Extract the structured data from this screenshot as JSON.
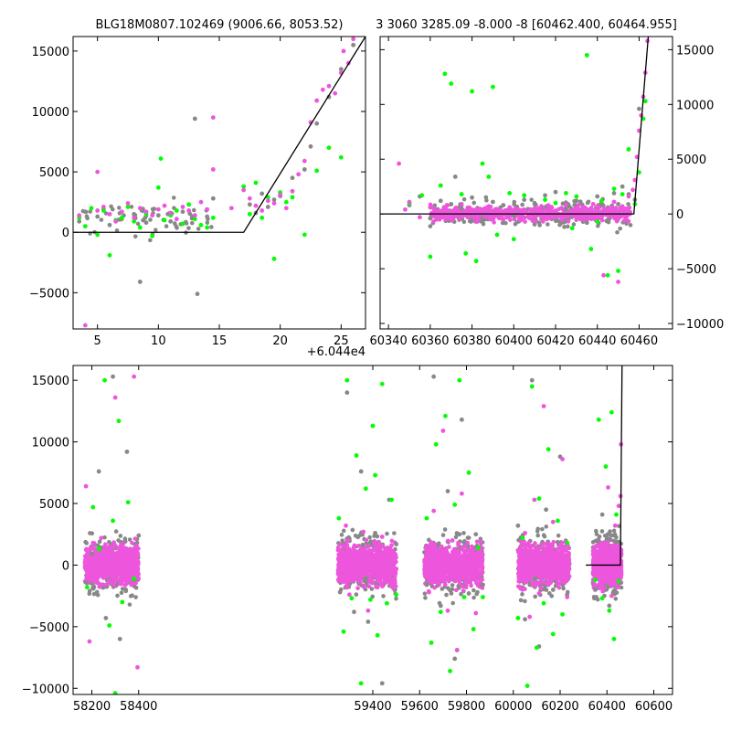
{
  "colors": {
    "pink": "#ee55dd",
    "green": "#00ff00",
    "gray": "#888888",
    "model": "#000000"
  },
  "chart_data": [
    {
      "id": "top-left",
      "type": "scatter",
      "title": "BLG18M0807.102469 (9006.66, 8053.52)",
      "xlim": [
        3,
        27
      ],
      "ylim": [
        -8000,
        16200
      ],
      "xticks": [
        5,
        10,
        15,
        20,
        25
      ],
      "yticks": [
        -5000,
        0,
        5000,
        10000,
        15000
      ],
      "ytick_side": "left",
      "model_line": {
        "x": [
          3,
          17,
          27
        ],
        "y": [
          0,
          0,
          16200
        ]
      },
      "series": [
        {
          "color": "gray",
          "x": [
            3.5,
            4,
            5,
            5.5,
            6,
            7,
            8,
            8.5,
            9,
            10,
            11,
            12,
            13,
            13.2,
            14,
            14.5,
            17.5,
            18,
            18.5,
            19,
            19.5,
            20,
            21,
            22,
            22.5,
            23,
            24,
            25,
            26
          ],
          "y": [
            900,
            1700,
            1300,
            1900,
            600,
            1100,
            1500,
            -4100,
            800,
            1400,
            900,
            1700,
            9400,
            -5100,
            1300,
            2800,
            2300,
            1600,
            3200,
            2100,
            2700,
            3000,
            4500,
            5200,
            7100,
            9000,
            11200,
            13500,
            15500
          ]
        },
        {
          "color": "green",
          "x": [
            3.5,
            4,
            4.5,
            5,
            5.5,
            6,
            6.5,
            7,
            7.5,
            8,
            8.5,
            9,
            9.5,
            10,
            10.2,
            10.5,
            11,
            11.5,
            12,
            12.5,
            13,
            13.5,
            14,
            14.5,
            17,
            17.5,
            18,
            18.5,
            19,
            19.5,
            20,
            20.5,
            21,
            22,
            23,
            24,
            25
          ],
          "y": [
            1200,
            500,
            2000,
            -200,
            1800,
            -1900,
            1000,
            1200,
            2100,
            900,
            400,
            1500,
            -300,
            3700,
            6100,
            1000,
            1400,
            1800,
            700,
            2300,
            1100,
            600,
            400,
            1200,
            3800,
            1500,
            4100,
            1200,
            2900,
            -2200,
            3300,
            2500,
            2900,
            -200,
            5100,
            7000,
            6200
          ]
        },
        {
          "color": "pink",
          "x": [
            3.5,
            4,
            5,
            5,
            5.5,
            6,
            6.5,
            7,
            7.5,
            8,
            8.5,
            9,
            9.5,
            10,
            10.5,
            11,
            11.5,
            12,
            12.5,
            13,
            13.5,
            14,
            14.5,
            14.5,
            16,
            17,
            17.5,
            18,
            18.5,
            19,
            19.5,
            20,
            20.5,
            21,
            21.5,
            22,
            22.5,
            23,
            23.5,
            24,
            24.5,
            25,
            25.2,
            25.6,
            26
          ],
          "y": [
            1400,
            -7700,
            1800,
            5000,
            2100,
            1500,
            900,
            1700,
            2400,
            1200,
            2000,
            1700,
            1400,
            1900,
            2200,
            1600,
            1100,
            2100,
            1800,
            1400,
            2500,
            1900,
            5200,
            9500,
            2000,
            3500,
            2800,
            2200,
            1800,
            2600,
            2400,
            3100,
            2000,
            3400,
            4800,
            5900,
            9100,
            10900,
            11800,
            12100,
            11500,
            13200,
            15000,
            14000,
            16000
          ]
        }
      ]
    },
    {
      "id": "top-right",
      "type": "scatter",
      "title": "3 3060 3285.09 -8.000 -8 [60462.400, 60464.955]",
      "xlim": [
        60336,
        60476
      ],
      "ylim": [
        -10500,
        16200
      ],
      "xticks": [
        60340,
        60360,
        60380,
        60400,
        60420,
        60440,
        60460
      ],
      "yticks": [
        -10000,
        -5000,
        0,
        5000,
        10000,
        15000
      ],
      "ytick_side": "right",
      "model_line": {
        "x": [
          60336,
          60457.5,
          60464.4
        ],
        "y": [
          0,
          0,
          16200
        ]
      },
      "series": [
        {
          "color": "gray",
          "x": [
            60350,
            60355,
            60360,
            60365,
            60370,
            60372,
            60375,
            60380,
            60385,
            60390,
            60395,
            60400,
            60405,
            60410,
            60415,
            60420,
            60425,
            60430,
            60435,
            60440,
            60442,
            60445,
            60448,
            60450,
            60452,
            60455,
            60458,
            60460
          ],
          "y": [
            800,
            1600,
            -400,
            1200,
            900,
            3400,
            500,
            1500,
            -700,
            1100,
            800,
            -200,
            1300,
            900,
            1700,
            2000,
            400,
            1200,
            -800,
            1600,
            1000,
            600,
            1900,
            900,
            2500,
            1800,
            1300,
            9600
          ]
        },
        {
          "color": "green",
          "x": [
            60350,
            60356,
            60360,
            60365,
            60367,
            60370,
            60375,
            60377,
            60380,
            60382,
            60385,
            60388,
            60390,
            60392,
            60398,
            60400,
            60405,
            60410,
            60415,
            60420,
            60425,
            60428,
            60430,
            60435,
            60437,
            60440,
            60442,
            60445,
            60448,
            60450,
            60452,
            60455,
            60458,
            60460,
            60462,
            60463
          ],
          "y": [
            1000,
            1700,
            -3900,
            2600,
            12800,
            11900,
            1800,
            -3600,
            11200,
            -4300,
            4600,
            3400,
            11600,
            -1900,
            1900,
            -2300,
            1700,
            500,
            1300,
            1000,
            1900,
            -1300,
            1600,
            14500,
            -3200,
            -700,
            1200,
            -5600,
            2300,
            -5200,
            1800,
            5900,
            900,
            3800,
            8700,
            10300
          ]
        },
        {
          "color": "pink",
          "x": [
            60345,
            60348,
            60350,
            60355,
            60360,
            60362,
            60365,
            60368,
            60370,
            60372,
            60375,
            60378,
            60380,
            60383,
            60385,
            60388,
            60390,
            60393,
            60395,
            60398,
            60400,
            60403,
            60405,
            60408,
            60410,
            60413,
            60415,
            60418,
            60420,
            60423,
            60425,
            60428,
            60430,
            60433,
            60435,
            60438,
            60440,
            60443,
            60445,
            60448,
            60450,
            60452,
            60455,
            60457,
            60458,
            60459,
            60460,
            60461,
            60462,
            60463,
            60464
          ],
          "y": [
            4600,
            400,
            1100,
            -300,
            600,
            300,
            -200,
            800,
            -400,
            500,
            900,
            -300,
            200,
            -600,
            400,
            700,
            -200,
            300,
            -500,
            600,
            100,
            -300,
            400,
            -100,
            500,
            200,
            -400,
            600,
            300,
            -200,
            800,
            100,
            -500,
            600,
            300,
            900,
            400,
            -5600,
            500,
            1100,
            -6200,
            700,
            1600,
            2200,
            3100,
            5200,
            7600,
            9000,
            10700,
            12900,
            15800
          ]
        }
      ]
    },
    {
      "id": "bottom",
      "type": "scatter",
      "title": "",
      "xlim": [
        58120,
        60680
      ],
      "ylim": [
        -10500,
        16200
      ],
      "xticks": [
        58200,
        58400,
        59400,
        59600,
        59800,
        60000,
        60200,
        60400,
        60600
      ],
      "yticks": [
        -10000,
        -5000,
        0,
        5000,
        10000,
        15000
      ],
      "ytick_side": "left",
      "offset_label": "+6.044e4",
      "model_line": {
        "x": [
          60310,
          60457.5,
          60464.4
        ],
        "y": [
          0,
          0,
          16200
        ]
      },
      "season_ranges": [
        [
          58170,
          58400
        ],
        [
          59250,
          59500
        ],
        [
          59620,
          59870
        ],
        [
          60020,
          60240
        ],
        [
          60340,
          60462
        ]
      ],
      "series": [
        {
          "color": "gray",
          "x": [
            58175,
            58200,
            58230,
            58260,
            58290,
            58320,
            58350,
            58380,
            58400,
            59260,
            59290,
            59320,
            59350,
            59380,
            59410,
            59440,
            59470,
            59500,
            59630,
            59660,
            59690,
            59720,
            59750,
            59780,
            59810,
            59840,
            59870,
            60020,
            60050,
            60080,
            60110,
            60140,
            60170,
            60200,
            60230,
            60350,
            60380,
            60410,
            60440,
            60455
          ],
          "y": [
            -1400,
            900,
            7600,
            -4300,
            15300,
            -6000,
            9200,
            -1200,
            2400,
            -2200,
            14000,
            -3800,
            7600,
            -4600,
            2600,
            -9600,
            5300,
            1700,
            -1600,
            15300,
            -3300,
            6000,
            -7600,
            11800,
            -2300,
            2500,
            -1600,
            3200,
            -4400,
            15000,
            -6600,
            4500,
            -2000,
            8800,
            -2400,
            -2000,
            4100,
            -3300,
            1900,
            -1400
          ]
        },
        {
          "color": "green",
          "x": [
            58180,
            58205,
            58230,
            58255,
            58275,
            58290,
            58300,
            58315,
            58330,
            58355,
            58380,
            59255,
            59275,
            59290,
            59310,
            59330,
            59350,
            59370,
            59390,
            59400,
            59410,
            59420,
            59440,
            59460,
            59480,
            59500,
            59630,
            59650,
            59670,
            59690,
            59710,
            59730,
            59750,
            59760,
            59770,
            59790,
            59810,
            59830,
            59850,
            59870,
            60020,
            60040,
            60060,
            60080,
            60100,
            60110,
            60130,
            60150,
            60170,
            60190,
            60210,
            60230,
            60350,
            60365,
            60380,
            60395,
            60410,
            60420,
            60430,
            60440,
            60450
          ],
          "y": [
            -1800,
            4700,
            1300,
            15000,
            -4900,
            3600,
            -10400,
            11700,
            -3000,
            5100,
            -1100,
            3800,
            -5400,
            15000,
            -2700,
            8900,
            -9600,
            6200,
            -2800,
            11300,
            7300,
            -5700,
            14700,
            -3100,
            5300,
            -2400,
            3800,
            -6300,
            9800,
            -3800,
            12100,
            -8600,
            4900,
            -6900,
            15000,
            -2600,
            7500,
            -5200,
            1400,
            -2600,
            -4300,
            2200,
            -9800,
            14500,
            -6700,
            5400,
            -3100,
            9400,
            -5600,
            3600,
            -4000,
            1800,
            -1200,
            11800,
            -2700,
            8000,
            -3700,
            12400,
            -6000,
            4100,
            -1300
          ]
        },
        {
          "color": "pink",
          "x": [
            58175,
            58190,
            58205,
            58220,
            58240,
            58260,
            58280,
            58300,
            58320,
            58340,
            58360,
            58380,
            58395,
            59255,
            59270,
            59285,
            59300,
            59320,
            59340,
            59360,
            59380,
            59400,
            59420,
            59440,
            59460,
            59480,
            59500,
            59625,
            59640,
            59660,
            59680,
            59700,
            59720,
            59740,
            59760,
            59780,
            59800,
            59820,
            59840,
            59860,
            60020,
            60035,
            60050,
            60070,
            60090,
            60110,
            60130,
            60150,
            60170,
            60190,
            60210,
            60230,
            60345,
            60360,
            60375,
            60390,
            60405,
            60420,
            60435,
            60450,
            60458,
            60460
          ],
          "y": [
            6400,
            -6200,
            1800,
            -900,
            2200,
            -1600,
            800,
            13600,
            -1500,
            1100,
            -500,
            15300,
            -8300,
            -1300,
            900,
            3200,
            -2400,
            1500,
            -600,
            2700,
            -3700,
            1200,
            -1800,
            2300,
            -900,
            1600,
            -300,
            1400,
            -2200,
            4400,
            -1100,
            10900,
            -3700,
            2000,
            -6900,
            5800,
            -1300,
            900,
            -3900,
            1900,
            1200,
            -1100,
            2600,
            -4200,
            5300,
            -2300,
            12900,
            -1600,
            3500,
            -800,
            8600,
            -2600,
            500,
            -700,
            1800,
            -1200,
            6300,
            -2500,
            3200,
            4800,
            5600,
            9800
          ]
        }
      ]
    }
  ]
}
